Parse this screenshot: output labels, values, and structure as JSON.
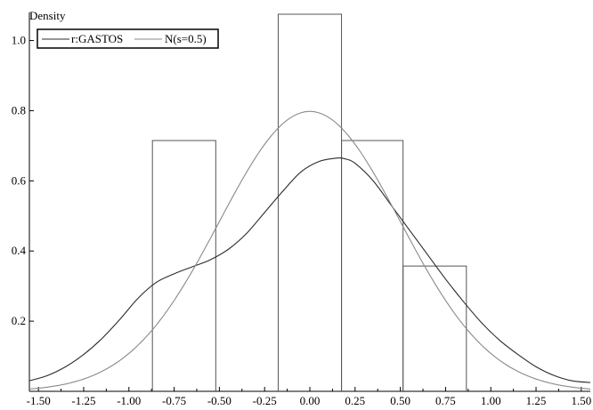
{
  "chart_data": {
    "type": "line",
    "ylabel": "Density",
    "xlim": [
      -1.55,
      1.55
    ],
    "ylim": [
      0,
      1.08
    ],
    "x_ticks": [
      -1.5,
      -1.25,
      -1.0,
      -0.75,
      -0.5,
      -0.25,
      0.0,
      0.25,
      0.5,
      0.75,
      1.0,
      1.25,
      1.5
    ],
    "x_tick_labels": [
      "-1.50",
      "-1.25",
      "-1.00",
      "-0.75",
      "-0.50",
      "-0.25",
      "0.00",
      "0.25",
      "0.50",
      "0.75",
      "1.00",
      "1.25",
      "1.50"
    ],
    "y_ticks": [
      0.2,
      0.4,
      0.6,
      0.8,
      1.0
    ],
    "y_tick_labels": [
      "0.2",
      "0.4",
      "0.6",
      "0.8",
      "1.0"
    ],
    "legend_position": "top-left",
    "histogram": {
      "bins": [
        {
          "x0": -0.87,
          "x1": -0.52,
          "density": 0.715
        },
        {
          "x0": -0.52,
          "x1": -0.175,
          "density": 0
        },
        {
          "x0": -0.175,
          "x1": 0.175,
          "density": 1.075
        },
        {
          "x0": 0.175,
          "x1": 0.515,
          "density": 0.715
        },
        {
          "x0": 0.515,
          "x1": 0.865,
          "density": 0.357
        }
      ]
    },
    "series": [
      {
        "name": "r:GASTOS",
        "color": "#2b2b2b",
        "x": [
          -1.55,
          -1.45,
          -1.35,
          -1.25,
          -1.15,
          -1.05,
          -0.95,
          -0.85,
          -0.75,
          -0.65,
          -0.55,
          -0.45,
          -0.35,
          -0.25,
          -0.15,
          -0.05,
          0.05,
          0.15,
          0.2,
          0.25,
          0.35,
          0.45,
          0.55,
          0.65,
          0.75,
          0.85,
          0.95,
          1.05,
          1.15,
          1.25,
          1.35,
          1.45,
          1.55
        ],
        "y": [
          0.03,
          0.045,
          0.07,
          0.105,
          0.15,
          0.205,
          0.265,
          0.31,
          0.335,
          0.355,
          0.375,
          0.405,
          0.45,
          0.51,
          0.57,
          0.625,
          0.655,
          0.665,
          0.662,
          0.65,
          0.6,
          0.53,
          0.46,
          0.39,
          0.32,
          0.255,
          0.195,
          0.145,
          0.105,
          0.07,
          0.045,
          0.03,
          0.025
        ]
      },
      {
        "name": "N(s=0.5)",
        "color": "#8a8a8a",
        "distribution": {
          "mean": 0,
          "sd": 0.5
        }
      }
    ]
  }
}
